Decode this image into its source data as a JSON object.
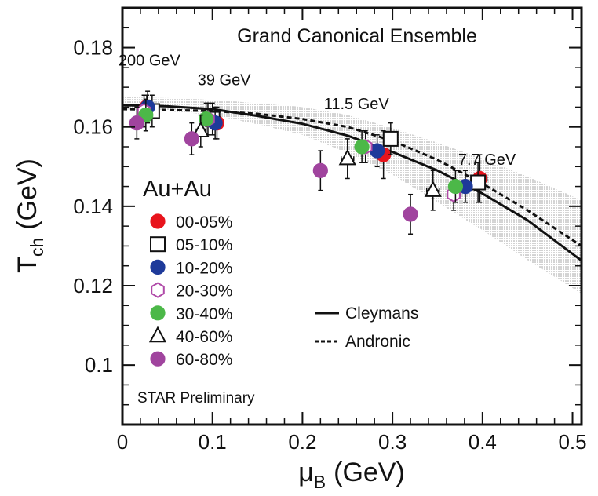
{
  "chart_data": {
    "type": "scatter",
    "title": "Grand Canonical Ensemble",
    "xlabel": {
      "main": "μ",
      "sub": "B",
      "unit": "(GeV)"
    },
    "ylabel": {
      "main": "T",
      "sub": "ch",
      "unit": "(GeV)"
    },
    "xlim": [
      0,
      0.51
    ],
    "ylim": [
      0.085,
      0.19
    ],
    "xticks": [
      "0",
      "0.1",
      "0.2",
      "0.3",
      "0.4",
      "0.5"
    ],
    "xtick_values": [
      0,
      0.1,
      0.2,
      0.3,
      0.4,
      0.5
    ],
    "yticks": [
      "0.1",
      "0.12",
      "0.14",
      "0.16",
      "0.18"
    ],
    "ytick_values": [
      0.1,
      0.12,
      0.14,
      0.16,
      0.18
    ],
    "grid": false,
    "system_label": "Au+Au",
    "preliminary_label": "STAR Preliminary",
    "energy_labels": [
      {
        "text": "200 GeV",
        "x": 0.03,
        "y": 0.1755
      },
      {
        "text": "39 GeV",
        "x": 0.113,
        "y": 0.1705
      },
      {
        "text": "11.5 GeV",
        "x": 0.26,
        "y": 0.1645
      },
      {
        "text": "7.7 GeV",
        "x": 0.405,
        "y": 0.1505
      }
    ],
    "centrality_series": [
      {
        "name": "00-05%",
        "marker": "circle",
        "color": "#e8141c",
        "fill": true,
        "points": [
          [
            0.027,
            0.165,
            0.005,
            0.003
          ],
          [
            0.105,
            0.161,
            0.004,
            0.004
          ],
          [
            0.29,
            0.153,
            0.007,
            0.006
          ],
          [
            0.397,
            0.147,
            0.008,
            0.006
          ]
        ]
      },
      {
        "name": "05-10%",
        "marker": "square",
        "color": "#111111",
        "fill": false,
        "points": [
          [
            0.033,
            0.164,
            0.005,
            0.004
          ],
          [
            0.1,
            0.162,
            0.005,
            0.004
          ],
          [
            0.298,
            0.157,
            0.007,
            0.004
          ],
          [
            0.395,
            0.146,
            0.007,
            0.005
          ]
        ]
      },
      {
        "name": "10-20%",
        "marker": "circle",
        "color": "#1e3a9a",
        "fill": true,
        "points": [
          [
            0.028,
            0.165,
            0.005,
            0.004
          ],
          [
            0.103,
            0.161,
            0.005,
            0.004
          ],
          [
            0.283,
            0.154,
            0.007,
            0.004
          ],
          [
            0.381,
            0.145,
            0.007,
            0.004
          ]
        ]
      },
      {
        "name": "20-30%",
        "marker": "hexagon",
        "color": "#b04aa8",
        "fill": false,
        "points": [
          [
            0.024,
            0.164,
            0.005,
            0.004
          ],
          [
            0.095,
            0.162,
            0.005,
            0.004
          ],
          [
            0.27,
            0.155,
            0.007,
            0.004
          ],
          [
            0.368,
            0.143,
            0.007,
            0.004
          ]
        ]
      },
      {
        "name": "30-40%",
        "marker": "circle",
        "color": "#4cb848",
        "fill": true,
        "points": [
          [
            0.026,
            0.163,
            0.005,
            0.004
          ],
          [
            0.093,
            0.162,
            0.005,
            0.004
          ],
          [
            0.266,
            0.155,
            0.007,
            0.004
          ],
          [
            0.37,
            0.145,
            0.007,
            0.004
          ]
        ]
      },
      {
        "name": "40-60%",
        "marker": "triangle",
        "color": "#111111",
        "fill": false,
        "points": [
          [
            0.087,
            0.159,
            0.005,
            0.004
          ],
          [
            0.25,
            0.152,
            0.007,
            0.005
          ],
          [
            0.345,
            0.144,
            0.007,
            0.005
          ]
        ]
      },
      {
        "name": "60-80%",
        "marker": "circle",
        "color": "#a0449e",
        "fill": true,
        "points": [
          [
            0.016,
            0.161,
            0.005,
            0.004
          ],
          [
            0.077,
            0.157,
            0.005,
            0.004
          ],
          [
            0.22,
            0.149,
            0.006,
            0.005
          ],
          [
            0.32,
            0.138,
            0.007,
            0.005
          ]
        ]
      }
    ],
    "model_curves": [
      {
        "name": "Cleymans",
        "style": "solid",
        "points": [
          [
            0,
            0.1655
          ],
          [
            0.05,
            0.1652
          ],
          [
            0.1,
            0.1645
          ],
          [
            0.15,
            0.1628
          ],
          [
            0.2,
            0.1608
          ],
          [
            0.25,
            0.1578
          ],
          [
            0.3,
            0.1537
          ],
          [
            0.35,
            0.149
          ],
          [
            0.4,
            0.1432
          ],
          [
            0.45,
            0.1365
          ],
          [
            0.51,
            0.1263
          ]
        ]
      },
      {
        "name": "Andronic",
        "style": "dashed",
        "points": [
          [
            0,
            0.1645
          ],
          [
            0.05,
            0.1643
          ],
          [
            0.1,
            0.164
          ],
          [
            0.15,
            0.1633
          ],
          [
            0.2,
            0.162
          ],
          [
            0.25,
            0.16
          ],
          [
            0.3,
            0.1565
          ],
          [
            0.35,
            0.1517
          ],
          [
            0.4,
            0.1457
          ],
          [
            0.45,
            0.139
          ],
          [
            0.51,
            0.13
          ]
        ]
      }
    ],
    "uncertainty_band": {
      "upper": [
        [
          0,
          0.1675
        ],
        [
          0.05,
          0.1673
        ],
        [
          0.1,
          0.1668
        ],
        [
          0.15,
          0.166
        ],
        [
          0.2,
          0.165
        ],
        [
          0.25,
          0.163
        ],
        [
          0.3,
          0.1597
        ],
        [
          0.35,
          0.156
        ],
        [
          0.4,
          0.152
        ],
        [
          0.45,
          0.1475
        ],
        [
          0.51,
          0.1415
        ]
      ],
      "lower": [
        [
          0,
          0.1645
        ],
        [
          0.05,
          0.164
        ],
        [
          0.1,
          0.163
        ],
        [
          0.15,
          0.1607
        ],
        [
          0.2,
          0.158
        ],
        [
          0.25,
          0.1535
        ],
        [
          0.3,
          0.148
        ],
        [
          0.35,
          0.141
        ],
        [
          0.4,
          0.134
        ],
        [
          0.45,
          0.1265
        ],
        [
          0.51,
          0.118
        ]
      ]
    }
  }
}
